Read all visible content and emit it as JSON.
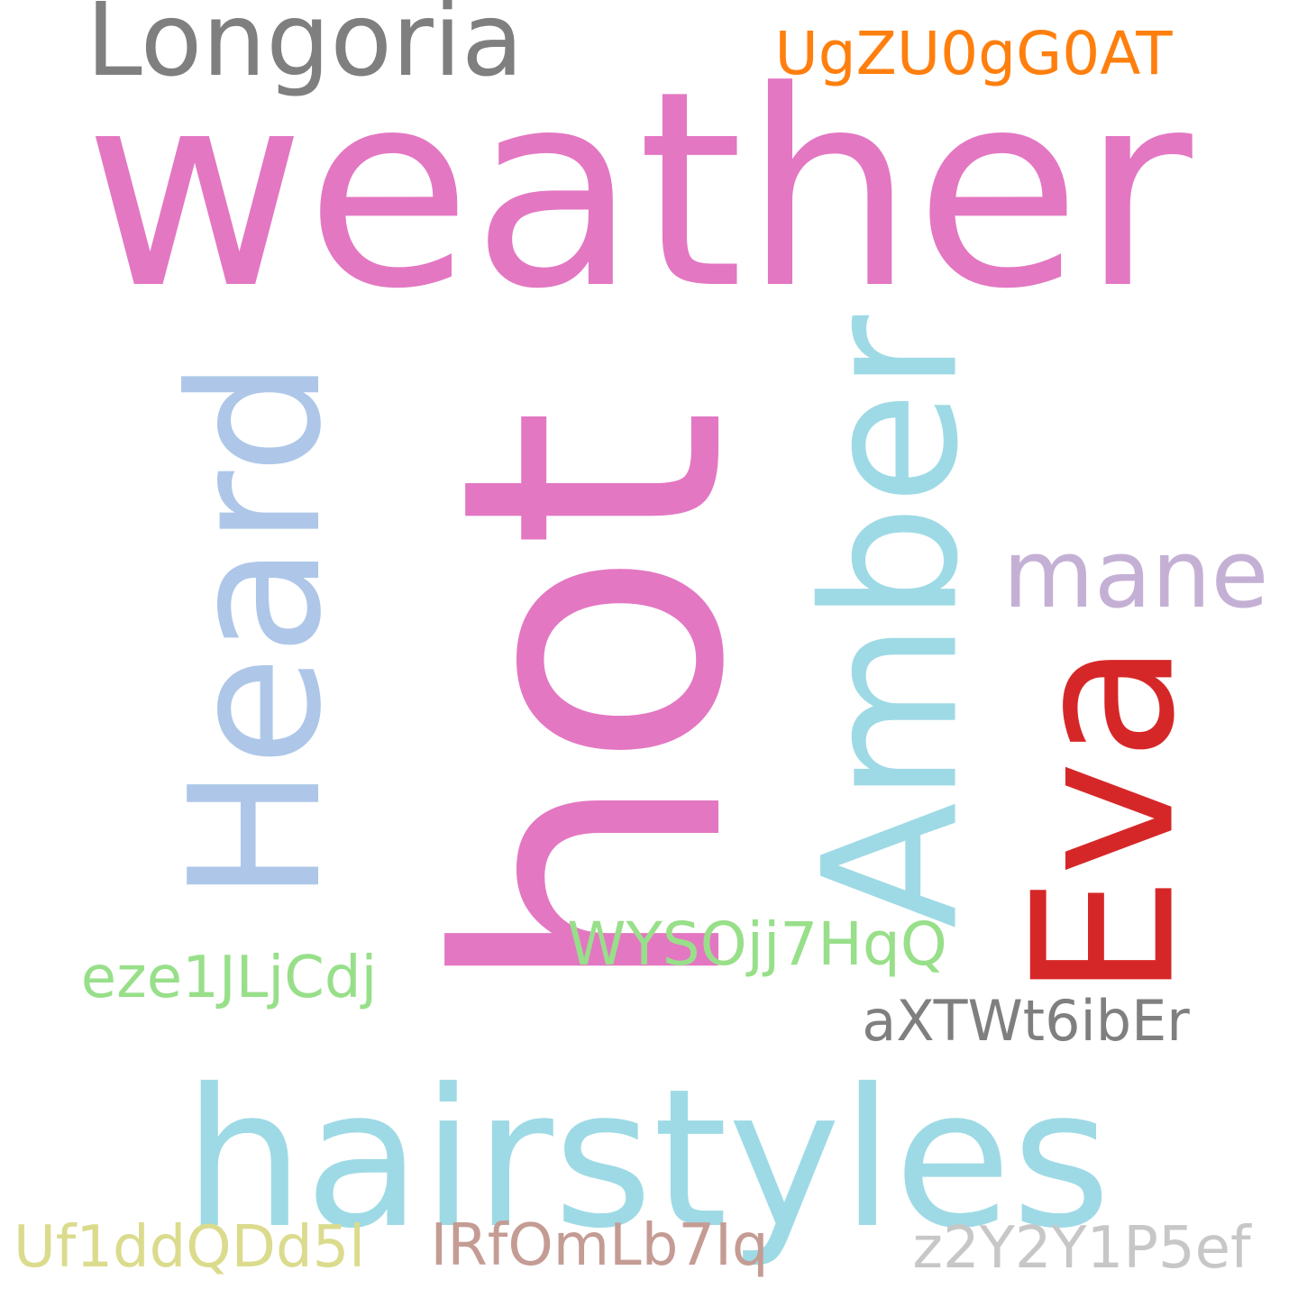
{
  "words": {
    "weather": {
      "text": "weather",
      "color": "#e377c2"
    },
    "hot": {
      "text": "hot",
      "color": "#e377c2"
    },
    "hairstyles": {
      "text": "hairstyles",
      "color": "#9edae5"
    },
    "heard": {
      "text": "Heard",
      "color": "#aec7e8"
    },
    "amber": {
      "text": "Amber",
      "color": "#9edae5"
    },
    "eva": {
      "text": "Eva",
      "color": "#d62728"
    },
    "longoria": {
      "text": "Longoria",
      "color": "#7f7f7f"
    },
    "mane": {
      "text": "mane",
      "color": "#c5b0d5"
    },
    "ugzu": {
      "text": "UgZU0gG0AT",
      "color": "#ff7f0e"
    },
    "wys": {
      "text": "WYSOjj7HqQ",
      "color": "#98df8a"
    },
    "eze": {
      "text": "eze1JLjCdj",
      "color": "#98df8a"
    },
    "axt": {
      "text": "aXTWt6ibEr",
      "color": "#7f7f7f"
    },
    "uf1": {
      "text": "Uf1ddQDd5l",
      "color": "#dbdb8d"
    },
    "irf": {
      "text": "IRfOmLb7Iq",
      "color": "#c49c94"
    },
    "z2y": {
      "text": "z2Y2Y1P5ef",
      "color": "#c7c7c7"
    }
  }
}
